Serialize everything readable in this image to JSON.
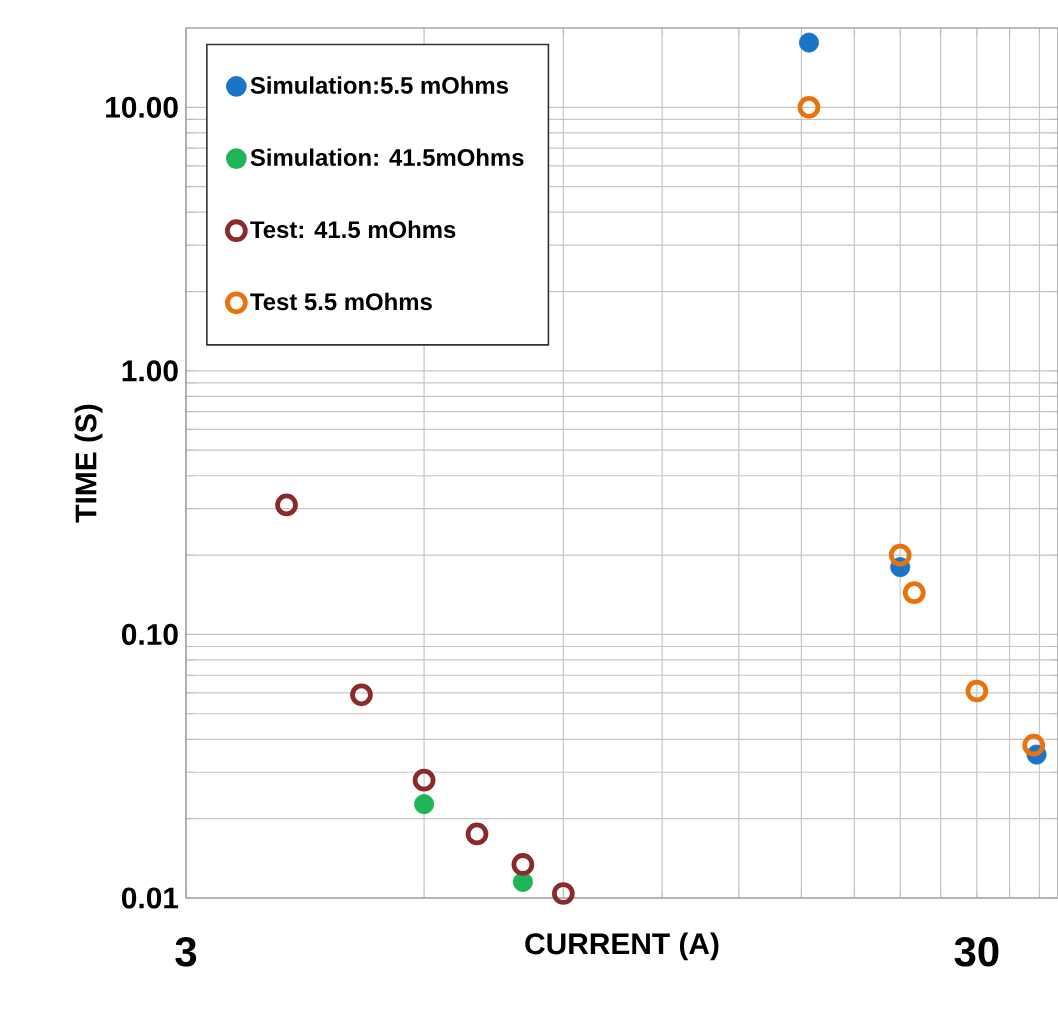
{
  "chart_data": {
    "type": "scatter",
    "xlabel": "CURRENT (A)",
    "ylabel": "TIME (S)",
    "log": "xy",
    "grid": true,
    "legend": "top left",
    "xlim": [
      3,
      38
    ],
    "ylim": [
      0.01,
      20
    ],
    "xticks": [
      3,
      {
        "value": 6,
        "label": null
      },
      {
        "value": 9,
        "label": null
      },
      {
        "value": 12,
        "label": null
      },
      {
        "value": 15,
        "label": null
      },
      {
        "value": 18,
        "label": null
      },
      {
        "value": 21,
        "label": null
      },
      {
        "value": 24,
        "label": null
      },
      {
        "value": 27,
        "label": null
      },
      30,
      {
        "value": 33,
        "label": null
      },
      {
        "value": 36,
        "label": null
      }
    ],
    "yticks": [
      {
        "value": 0.01,
        "label": "0.01"
      },
      {
        "value": 0.02,
        "label": null
      },
      {
        "value": 0.03,
        "label": null
      },
      {
        "value": 0.04,
        "label": null
      },
      {
        "value": 0.05,
        "label": null
      },
      {
        "value": 0.06,
        "label": null
      },
      {
        "value": 0.07,
        "label": null
      },
      {
        "value": 0.08,
        "label": null
      },
      {
        "value": 0.09,
        "label": null
      },
      {
        "value": 0.1,
        "label": "0.10"
      },
      {
        "value": 0.2,
        "label": null
      },
      {
        "value": 0.3,
        "label": null
      },
      {
        "value": 0.4,
        "label": null
      },
      {
        "value": 0.5,
        "label": null
      },
      {
        "value": 0.6,
        "label": null
      },
      {
        "value": 0.7,
        "label": null
      },
      {
        "value": 0.8,
        "label": null
      },
      {
        "value": 0.9,
        "label": null
      },
      {
        "value": 1,
        "label": "1.00"
      },
      {
        "value": 2,
        "label": null
      },
      {
        "value": 3,
        "label": null
      },
      {
        "value": 4,
        "label": null
      },
      {
        "value": 5,
        "label": null
      },
      {
        "value": 6,
        "label": null
      },
      {
        "value": 7,
        "label": null
      },
      {
        "value": 8,
        "label": null
      },
      {
        "value": 9,
        "label": null
      },
      {
        "value": 10,
        "label": "10.00"
      }
    ],
    "series": [
      {
        "name": "Simulation:5.5 mOhms",
        "color": "#1a75c8",
        "marker": "circle",
        "x": [
          18.4,
          24,
          35.7
        ],
        "values": [
          17.6,
          0.18,
          0.035
        ]
      },
      {
        "name": "Simulation: 41.5mOhms",
        "color": "#1fb455",
        "marker": "circle",
        "x": [
          6,
          8
        ],
        "values": [
          0.0227,
          0.0115
        ]
      },
      {
        "name": "Test: 41.5 mOhms",
        "color": "#8b2a2a",
        "marker": "circle-open",
        "x": [
          4.02,
          5,
          6,
          7,
          8,
          9
        ],
        "values": [
          0.31,
          0.059,
          0.028,
          0.0175,
          0.0134,
          0.0104
        ]
      },
      {
        "name": "Test 5.5 mOhms",
        "color": "#e8720c",
        "marker": "circle-open",
        "x": [
          18.4,
          24,
          25,
          30,
          35.4
        ],
        "values": [
          10.0,
          0.2,
          0.144,
          0.061,
          0.038
        ]
      }
    ]
  }
}
